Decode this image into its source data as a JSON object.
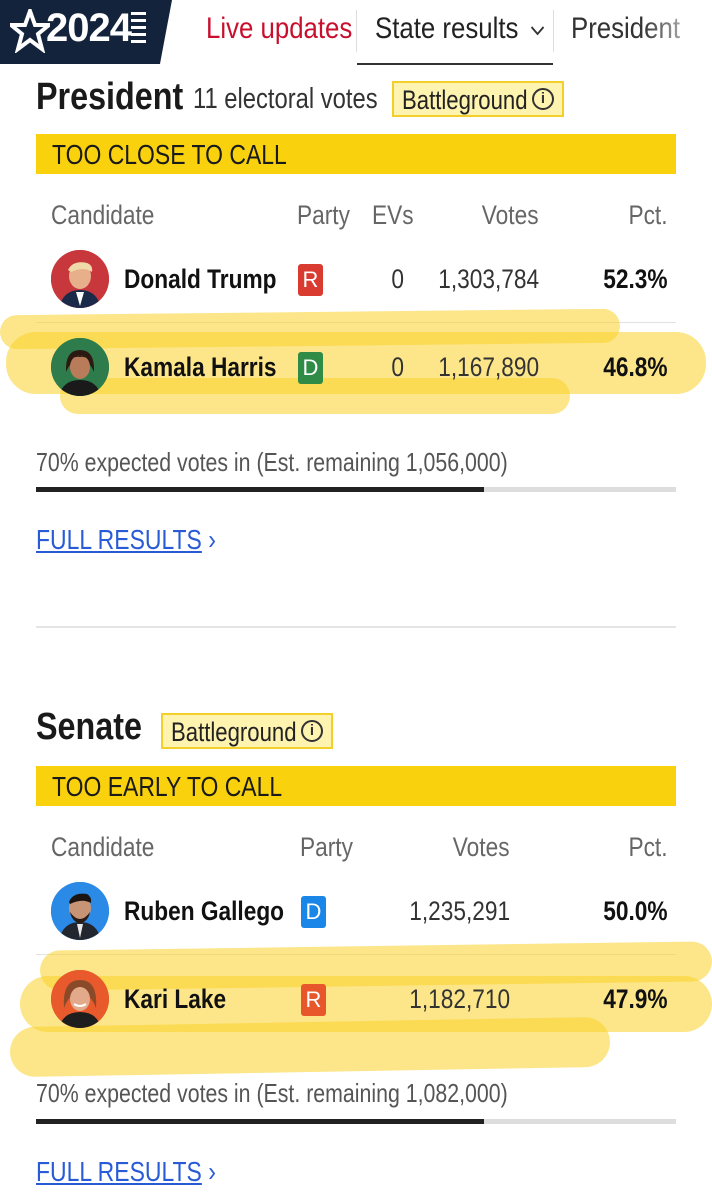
{
  "nav": {
    "logo_year": "2024",
    "live_updates": "Live updates",
    "state_results": "State results",
    "president": "President"
  },
  "president": {
    "title": "President",
    "electoral_votes": "11 electoral votes",
    "badge": "Battleground",
    "status": "TOO CLOSE TO CALL",
    "headers": {
      "candidate": "Candidate",
      "party": "Party",
      "evs": "EVs",
      "votes": "Votes",
      "pct": "Pct."
    },
    "rows": [
      {
        "name": "Donald Trump",
        "party": "R",
        "evs": "0",
        "votes": "1,303,784",
        "pct": "52.3%"
      },
      {
        "name": "Kamala Harris",
        "party": "D",
        "evs": "0",
        "votes": "1,167,890",
        "pct": "46.8%"
      }
    ],
    "expected": "70% expected votes in (Est. remaining 1,056,000)",
    "expected_fraction": 0.7,
    "full_results": "FULL RESULTS"
  },
  "senate": {
    "title": "Senate",
    "badge": "Battleground",
    "status": "TOO EARLY TO CALL",
    "headers": {
      "candidate": "Candidate",
      "party": "Party",
      "votes": "Votes",
      "pct": "Pct."
    },
    "rows": [
      {
        "name": "Ruben Gallego",
        "party": "D",
        "votes": "1,235,291",
        "pct": "50.0%"
      },
      {
        "name": "Kari Lake",
        "party": "R",
        "votes": "1,182,710",
        "pct": "47.9%"
      }
    ],
    "expected": "70% expected votes in (Est. remaining 1,082,000)",
    "expected_fraction": 0.7,
    "full_results": "FULL RESULTS"
  },
  "colors": {
    "navy": "#14233c",
    "live_red": "#c8102e",
    "status_yellow": "#f9d20d",
    "republican_red": "#d93b30",
    "democrat_green": "#2f8b45",
    "democrat_blue": "#1a86e8",
    "link_blue": "#2a5bd7"
  }
}
